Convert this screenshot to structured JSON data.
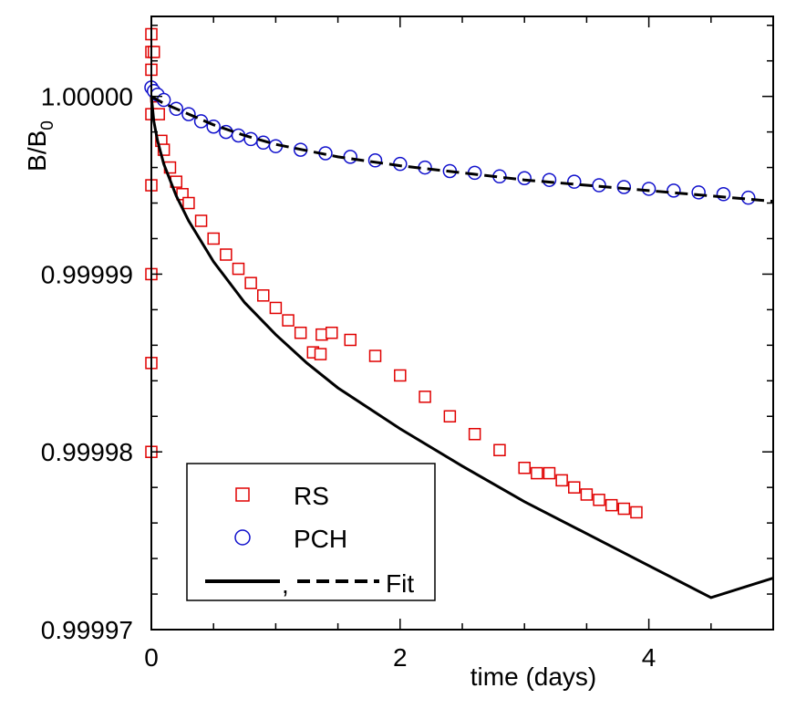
{
  "chart_data": {
    "type": "scatter",
    "title": "",
    "xlabel": "time (days)",
    "ylabel": "B/B",
    "ylabel_subscript": "0",
    "xlim": [
      0,
      5
    ],
    "ylim": [
      0.99997,
      1.0000045
    ],
    "x_ticks": [
      0,
      2,
      4
    ],
    "x_tick_labels": [
      "0",
      "2",
      "4"
    ],
    "y_ticks": [
      0.99997,
      0.99998,
      0.99999,
      1.0
    ],
    "y_tick_labels": [
      "0.99997",
      "0.99998",
      "0.99999",
      "1.00000"
    ],
    "grid": false,
    "legend_position": "bottom-left",
    "legend": [
      {
        "label": "RS",
        "marker": "square",
        "color": "#e00000"
      },
      {
        "label": "PCH",
        "marker": "circle",
        "color": "#1010cc"
      },
      {
        "label": "Fit",
        "separator": ",",
        "styles": [
          "solid",
          "dashed"
        ],
        "color": "#000000"
      }
    ],
    "series": [
      {
        "name": "RS",
        "marker": "square",
        "color": "#e00000",
        "x": [
          0.0,
          0.0,
          0.0,
          0.0,
          0.0,
          0.0,
          0.0,
          0.0,
          0.02,
          0.04,
          0.06,
          0.08,
          0.1,
          0.15,
          0.2,
          0.25,
          0.3,
          0.4,
          0.5,
          0.6,
          0.7,
          0.8,
          0.9,
          1.0,
          1.1,
          1.2,
          1.3,
          1.36,
          1.37,
          1.45,
          1.6,
          1.8,
          2.0,
          2.2,
          2.4,
          2.6,
          2.8,
          3.0,
          3.1,
          3.2,
          3.3,
          3.4,
          3.5,
          3.6,
          3.7,
          3.8,
          3.9
        ],
        "y": [
          1.0000035,
          1.0000025,
          1.0000015,
          0.999999,
          0.999995,
          0.99999,
          0.999985,
          0.99998,
          1.0000025,
          1.0,
          0.999999,
          0.9999975,
          0.999997,
          0.999996,
          0.9999952,
          0.9999945,
          0.999994,
          0.999993,
          0.999992,
          0.9999911,
          0.9999903,
          0.9999895,
          0.9999888,
          0.9999881,
          0.9999874,
          0.9999867,
          0.9999856,
          0.9999855,
          0.9999866,
          0.9999867,
          0.9999863,
          0.9999854,
          0.9999843,
          0.9999831,
          0.999982,
          0.999981,
          0.9999801,
          0.9999791,
          0.9999788,
          0.9999788,
          0.9999784,
          0.999978,
          0.9999776,
          0.9999773,
          0.999977,
          0.9999768,
          0.9999766
        ]
      },
      {
        "name": "PCH",
        "marker": "circle",
        "color": "#1010cc",
        "x": [
          0.0,
          0.02,
          0.05,
          0.1,
          0.2,
          0.3,
          0.4,
          0.5,
          0.6,
          0.7,
          0.8,
          0.9,
          1.0,
          1.2,
          1.4,
          1.6,
          1.8,
          2.0,
          2.2,
          2.4,
          2.6,
          2.8,
          3.0,
          3.2,
          3.4,
          3.6,
          3.8,
          4.0,
          4.2,
          4.4,
          4.6,
          4.8
        ],
        "y": [
          1.0000005,
          1.0000003,
          1.0000001,
          0.9999998,
          0.9999993,
          0.999999,
          0.9999986,
          0.9999983,
          0.999998,
          0.9999978,
          0.9999976,
          0.9999974,
          0.9999972,
          0.999997,
          0.9999968,
          0.9999966,
          0.9999964,
          0.9999962,
          0.999996,
          0.9999958,
          0.9999957,
          0.9999955,
          0.9999954,
          0.9999953,
          0.9999952,
          0.999995,
          0.9999949,
          0.9999948,
          0.9999947,
          0.9999946,
          0.9999945,
          0.9999943
        ]
      },
      {
        "name": "Fit (RS)",
        "style": "solid",
        "color": "#000000",
        "x": [
          0.0,
          0.02,
          0.05,
          0.1,
          0.2,
          0.3,
          0.5,
          0.75,
          1.0,
          1.25,
          1.5,
          2.0,
          2.5,
          3.0,
          3.5,
          4.0,
          4.5,
          5.0
        ],
        "y": [
          1.0,
          0.9999986,
          0.9999975,
          0.9999962,
          0.9999944,
          0.999993,
          0.9999907,
          0.9999884,
          0.9999866,
          0.999985,
          0.9999836,
          0.9999813,
          0.9999792,
          0.9999772,
          0.9999754,
          0.9999736,
          0.9999718,
          0.9999729
        ]
      },
      {
        "name": "Fit (PCH)",
        "style": "dashed",
        "color": "#000000",
        "x": [
          0.0,
          0.1,
          0.3,
          0.5,
          0.75,
          1.0,
          1.5,
          2.0,
          2.5,
          3.0,
          3.5,
          4.0,
          4.5,
          5.0
        ],
        "y": [
          1.0,
          0.9999996,
          0.999999,
          0.9999984,
          0.9999978,
          0.9999973,
          0.9999966,
          0.9999961,
          0.9999957,
          0.9999953,
          0.999995,
          0.9999947,
          0.9999944,
          0.9999941
        ]
      }
    ]
  }
}
